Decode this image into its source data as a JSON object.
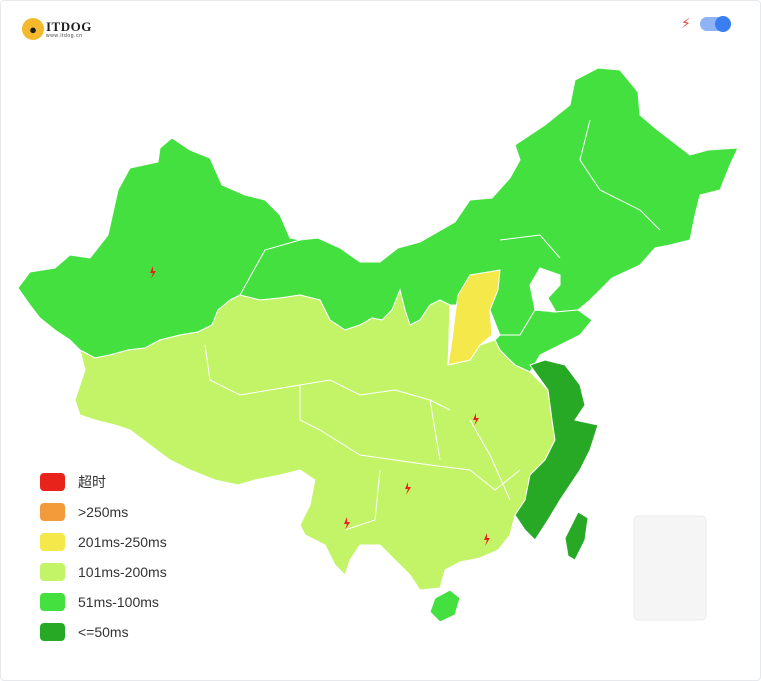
{
  "header": {
    "logo_text": "ITDOG",
    "logo_sub": "www.itdog.cn",
    "logo_icon": "dog-icon",
    "bolt_icon": "lightning-bolt-icon",
    "toggle_on": true
  },
  "colors": {
    "timeout": "#e8231c",
    "over250": "#f39a3a",
    "ms201_250": "#f4e84a",
    "ms101_200": "#c3f468",
    "ms51_100": "#44e040",
    "le50": "#27a925",
    "bolt": "#e8231c",
    "border": "#ffffff",
    "inset": "#f0f0f0"
  },
  "legend": [
    {
      "label": "超时",
      "color": "#e8231c"
    },
    {
      "label": ">250ms",
      "color": "#f39a3a"
    },
    {
      "label": "201ms-250ms",
      "color": "#f4e84a"
    },
    {
      "label": "101ms-200ms",
      "color": "#c3f468"
    },
    {
      "label": "51ms-100ms",
      "color": "#44e040"
    },
    {
      "label": "<=50ms",
      "color": "#27a925"
    }
  ],
  "map_regions": [
    {
      "name": "xinjiang",
      "band": "51ms-100ms",
      "bolt": true
    },
    {
      "name": "tibet",
      "band": "101ms-200ms",
      "bolt": false
    },
    {
      "name": "qinghai",
      "band": "101ms-200ms",
      "bolt": false
    },
    {
      "name": "gansu-inner-mongolia-northeast",
      "band": "51ms-100ms",
      "bolt": false
    },
    {
      "name": "shanxi",
      "band": "201ms-250ms",
      "bolt": false
    },
    {
      "name": "central-south",
      "band": "101ms-200ms",
      "bolt": true
    },
    {
      "name": "hubei",
      "band": "101ms-200ms",
      "bolt": true
    },
    {
      "name": "guizhou",
      "band": "101ms-200ms",
      "bolt": true
    },
    {
      "name": "yunnan",
      "band": "101ms-200ms",
      "bolt": true
    },
    {
      "name": "guangdong",
      "band": "101ms-200ms",
      "bolt": true
    },
    {
      "name": "jiangsu-zhejiang-fujian",
      "band": "<=50ms",
      "bolt": false
    },
    {
      "name": "taiwan",
      "band": "<=50ms",
      "bolt": false
    },
    {
      "name": "hainan",
      "band": "51ms-100ms",
      "bolt": false
    },
    {
      "name": "shandong-henan",
      "band": "51ms-100ms",
      "bolt": false
    }
  ]
}
